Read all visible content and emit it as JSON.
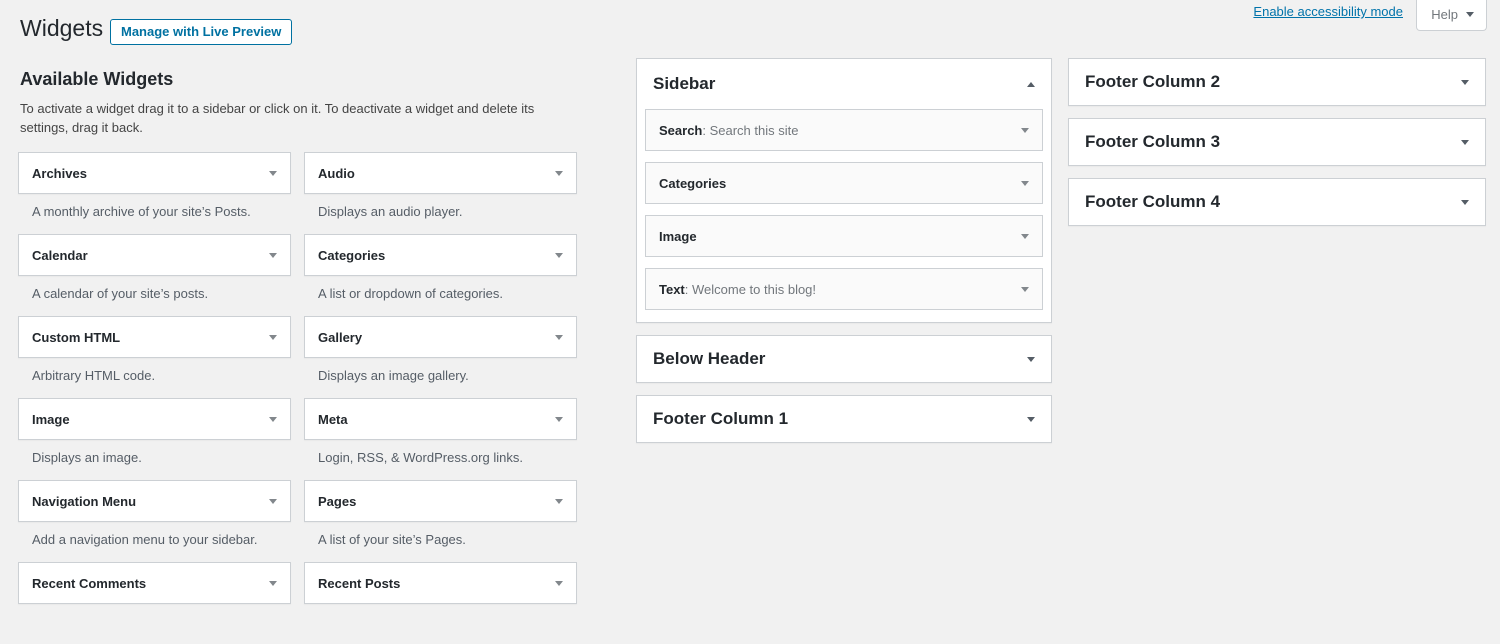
{
  "page": {
    "title": "Widgets",
    "manage_button_label": "Manage with Live Preview",
    "accessibility_link_label": "Enable accessibility mode",
    "help_label": "Help"
  },
  "colors": {
    "page_background": "#f1f1f1",
    "accent_link": "#0073aa",
    "button_accent": "#0071a1",
    "border": "#ccd0d4",
    "heading_text": "#23282d",
    "muted_text": "#555d66"
  },
  "icons": {
    "help_dropdown": "chevron-down-icon",
    "panel_open_toggle": "chevron-up-icon",
    "panel_closed_toggle": "chevron-down-icon",
    "widget_toggle": "chevron-down-icon"
  },
  "available": {
    "heading": "Available Widgets",
    "description": "To activate a widget drag it to a sidebar or click on it. To deactivate a widget and delete its settings, drag it back.",
    "widgets": [
      {
        "title": "Archives",
        "description": "A monthly archive of your site’s Posts."
      },
      {
        "title": "Audio",
        "description": "Displays an audio player."
      },
      {
        "title": "Calendar",
        "description": "A calendar of your site’s posts."
      },
      {
        "title": "Categories",
        "description": "A list or dropdown of categories."
      },
      {
        "title": "Custom HTML",
        "description": "Arbitrary HTML code."
      },
      {
        "title": "Gallery",
        "description": "Displays an image gallery."
      },
      {
        "title": "Image",
        "description": "Displays an image."
      },
      {
        "title": "Meta",
        "description": "Login, RSS, & WordPress.org links."
      },
      {
        "title": "Navigation Menu",
        "description": "Add a navigation menu to your sidebar."
      },
      {
        "title": "Pages",
        "description": "A list of your site’s Pages."
      },
      {
        "title": "Recent Comments",
        "description": ""
      },
      {
        "title": "Recent Posts",
        "description": ""
      }
    ]
  },
  "sidebars": {
    "middle": [
      {
        "name": "Sidebar",
        "widgets": [
          {
            "title": "Search",
            "suffix": ": Search this site"
          },
          {
            "title": "Categories",
            "suffix": ""
          },
          {
            "title": "Image",
            "suffix": ""
          },
          {
            "title": "Text",
            "suffix": ": Welcome to this blog!"
          }
        ]
      },
      {
        "name": "Below Header"
      },
      {
        "name": "Footer Column 1"
      }
    ],
    "right": [
      {
        "name": "Footer Column 2"
      },
      {
        "name": "Footer Column 3"
      },
      {
        "name": "Footer Column 4"
      }
    ]
  }
}
